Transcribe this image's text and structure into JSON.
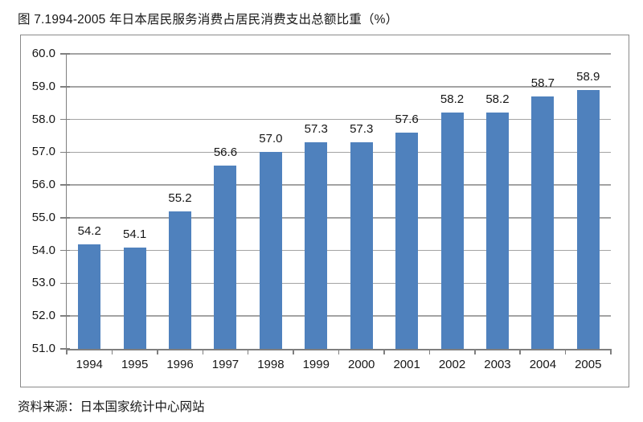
{
  "page": {
    "title": "图 7.1994-2005 年日本居民服务消费占居民消费支出总额比重（%）",
    "source": "资料来源：日本国家统计中心网站"
  },
  "chart_data": {
    "type": "bar",
    "title": "图 7.1994-2005 年日本居民服务消费占居民消费支出总额比重（%）",
    "categories": [
      "1994",
      "1995",
      "1996",
      "1997",
      "1998",
      "1999",
      "2000",
      "2001",
      "2002",
      "2003",
      "2004",
      "2005"
    ],
    "values": [
      54.2,
      54.1,
      55.2,
      56.6,
      57.0,
      57.3,
      57.3,
      57.6,
      58.2,
      58.2,
      58.7,
      58.9
    ],
    "data_labels": [
      "54.2",
      "54.1",
      "55.2",
      "56.6",
      "57.0",
      "57.3",
      "57.3",
      "57.6",
      "58.2",
      "58.2",
      "58.7",
      "58.9"
    ],
    "ylim": [
      51.0,
      60.0
    ],
    "ytick_step": 1.0,
    "ytick_labels": [
      "51.0",
      "52.0",
      "53.0",
      "54.0",
      "55.0",
      "56.0",
      "57.0",
      "58.0",
      "59.0",
      "60.0"
    ],
    "grid": true,
    "legend_position": "none",
    "bar_color": "#4F81BD",
    "gridline_color": "#a3a3a3",
    "axis_color": "#7f7f7f",
    "source": "资料来源：日本国家统计中心网站"
  }
}
